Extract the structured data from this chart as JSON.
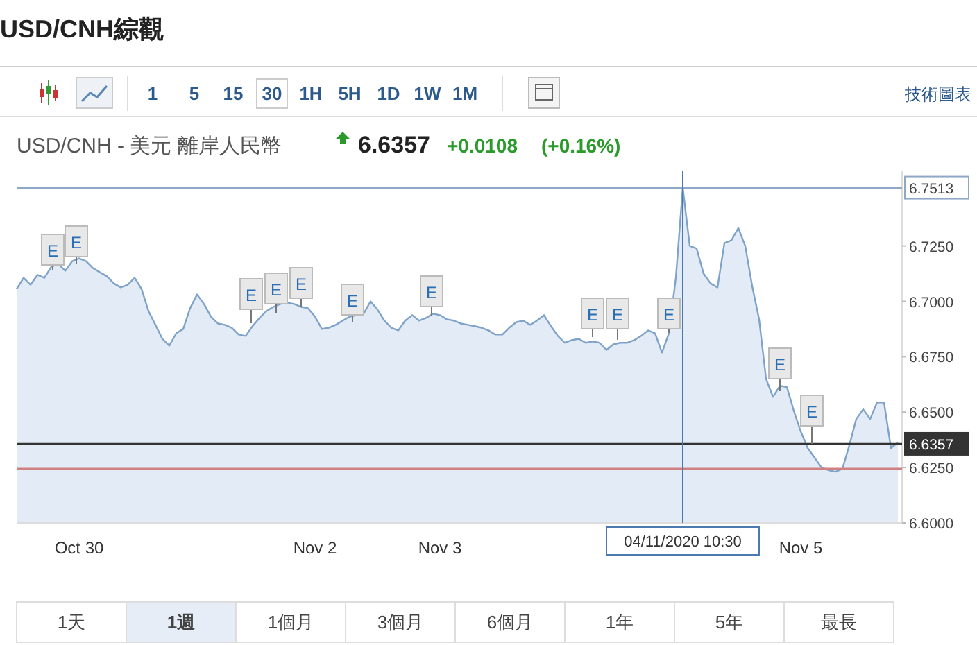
{
  "chart_data": {
    "type": "area",
    "title": "USD/CNH綜觀",
    "subtitle": "USD/CNH - 美元 離岸人民幣",
    "categories": [
      null,
      null,
      null,
      null,
      null,
      null,
      null,
      null,
      null,
      "Oct 30",
      null,
      null,
      null,
      null,
      null,
      null,
      null,
      null,
      null,
      null,
      null,
      null,
      null,
      null,
      null,
      null,
      null,
      null,
      null,
      null,
      null,
      null,
      null,
      null,
      null,
      null,
      null,
      null,
      null,
      null,
      null,
      null,
      null,
      "Nov 2",
      null,
      null,
      null,
      null,
      null,
      null,
      null,
      null,
      null,
      null,
      null,
      null,
      null,
      null,
      null,
      null,
      null,
      "Nov 3",
      null,
      null,
      null,
      null,
      null,
      null,
      null,
      null,
      null,
      null,
      null,
      null,
      null,
      null,
      null,
      null,
      null,
      null,
      null,
      null,
      null,
      null,
      null,
      null,
      null,
      null,
      null,
      null,
      null,
      null,
      null,
      null,
      null,
      null,
      "04/11/2020 10:30",
      null,
      null,
      null,
      null,
      null,
      null,
      null,
      null,
      null,
      null,
      null,
      null,
      null,
      null,
      null,
      null,
      "Nov 5",
      null,
      null,
      null,
      null,
      null,
      null,
      null,
      null,
      null,
      null,
      null,
      null,
      null,
      null
    ],
    "series": [
      {
        "color": "#7fa3c8",
        "values": [
          6.7056,
          6.7106,
          6.7075,
          6.7119,
          6.7106,
          6.7156,
          6.7169,
          6.7138,
          6.7181,
          6.7194,
          6.7181,
          6.715,
          6.7131,
          6.7113,
          6.7081,
          6.7063,
          6.7075,
          6.7106,
          6.7056,
          6.6956,
          6.6894,
          6.6831,
          6.68,
          6.6856,
          6.6875,
          6.6969,
          6.7031,
          6.6988,
          6.6931,
          6.69,
          6.6894,
          6.6881,
          6.685,
          6.6844,
          6.6888,
          6.6925,
          6.6956,
          6.6975,
          6.6988,
          6.6994,
          6.6988,
          6.6975,
          6.6969,
          6.6931,
          6.6875,
          6.6881,
          6.6894,
          6.6913,
          6.6931,
          6.6938,
          6.6944,
          6.7,
          6.6963,
          6.6913,
          6.6881,
          6.6869,
          6.6913,
          6.6938,
          6.6913,
          6.6925,
          6.6944,
          6.6938,
          6.6919,
          6.6913,
          6.69,
          6.6894,
          6.6888,
          6.6881,
          6.6869,
          6.685,
          6.685,
          6.6881,
          6.6906,
          6.6913,
          6.6894,
          6.6913,
          6.6938,
          6.6888,
          6.6844,
          6.6813,
          6.6825,
          6.6831,
          6.6813,
          6.6819,
          6.6813,
          6.6781,
          6.6806,
          6.6813,
          6.6813,
          6.6825,
          6.6844,
          6.6869,
          6.6856,
          6.6769,
          6.6856,
          6.7106,
          6.7513,
          6.725,
          6.7238,
          6.7125,
          6.7081,
          6.7063,
          6.7263,
          6.7275,
          6.7331,
          6.725,
          6.7069,
          6.6919,
          6.665,
          6.6569,
          6.6619,
          6.6613,
          6.6506,
          6.6413,
          6.6338,
          6.6294,
          6.625,
          6.6238,
          6.6231,
          6.6244,
          6.635,
          6.6469,
          6.6513,
          6.6469,
          6.6544,
          6.6544,
          6.6338,
          6.6363
        ]
      }
    ],
    "ylim": [
      6.6,
      6.759
    ],
    "yticks": [
      {
        "value": 6.6,
        "label": "6.6000"
      },
      {
        "value": 6.625,
        "label": "6.6250"
      },
      {
        "value": 6.65,
        "label": "6.6500"
      },
      {
        "value": 6.675,
        "label": "6.6750"
      },
      {
        "value": 6.7,
        "label": "6.7000"
      },
      {
        "value": 6.725,
        "label": "6.7250"
      }
    ],
    "ref_lines": [
      {
        "axis": "y",
        "value": 6.7513,
        "label": "6.7513",
        "color": "#8fa8c8"
      },
      {
        "axis": "y",
        "value": 6.6357,
        "label": "6.6357",
        "color": "#333333"
      },
      {
        "axis": "y",
        "value": 6.6245,
        "color": "#d08080"
      },
      {
        "axis": "x",
        "value": "04/11/2020 10:30",
        "color": "#4a7ab0"
      }
    ],
    "annotations": [
      "6.6357",
      "+0.0108",
      "(+0.16%)",
      "15",
      "1",
      "5",
      "30",
      "1H",
      "5H",
      "1D",
      "1W",
      "1M",
      "技術圖表",
      "1天",
      "1週",
      "1個月",
      "3個月",
      "6個月",
      "1年",
      "5年",
      "最長",
      "E",
      "E",
      "E",
      "E",
      "E",
      "E",
      "E",
      "E",
      "E",
      "E",
      "E",
      "E"
    ]
  }
}
